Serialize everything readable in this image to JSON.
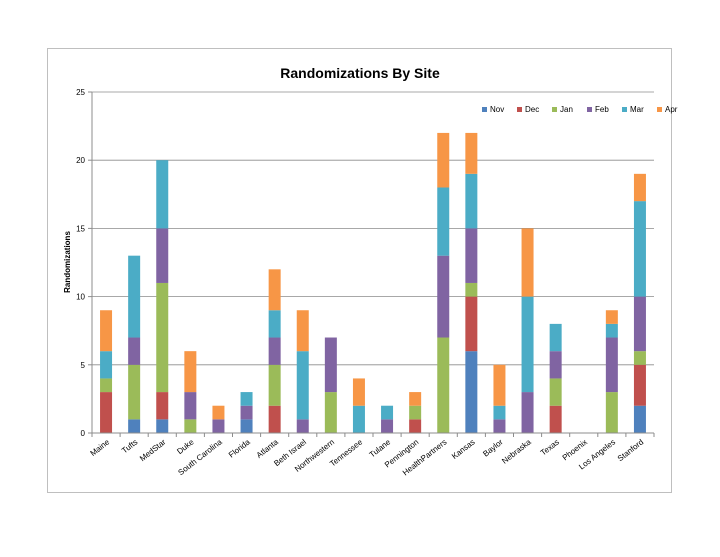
{
  "chart_data": {
    "type": "bar",
    "stacked": true,
    "title": "Randomizations By Site",
    "xlabel": "",
    "ylabel": "Randomizations",
    "ylim": [
      0,
      25
    ],
    "yticks": [
      0,
      5,
      10,
      15,
      20,
      25
    ],
    "grid": true,
    "legend_position": "top-right",
    "categories": [
      "Maine",
      "Tufts",
      "MedStar",
      "Duke",
      "South Carolina",
      "Florida",
      "Atlanta",
      "Beth Israel",
      "Northwestern",
      "Tennessee",
      "Tulane",
      "Pennington",
      "HealthPartners",
      "Kansas",
      "Baylor",
      "Nebraska",
      "Texas",
      "Phoenix",
      "Los Angeles",
      "Stanford"
    ],
    "series": [
      {
        "name": "Nov",
        "color": "#4F81BD",
        "values": [
          0,
          1,
          1,
          0,
          0,
          1,
          0,
          0,
          0,
          0,
          0,
          0,
          0,
          6,
          0,
          0,
          0,
          0,
          0,
          2
        ]
      },
      {
        "name": "Dec",
        "color": "#C0504D",
        "values": [
          3,
          0,
          2,
          0,
          0,
          0,
          2,
          0,
          0,
          0,
          0,
          1,
          0,
          4,
          0,
          0,
          2,
          0,
          0,
          3
        ]
      },
      {
        "name": "Jan",
        "color": "#9BBB59",
        "values": [
          1,
          4,
          8,
          1,
          0,
          0,
          3,
          0,
          3,
          0,
          0,
          1,
          7,
          1,
          0,
          0,
          2,
          0,
          3,
          1
        ]
      },
      {
        "name": "Feb",
        "color": "#8064A2",
        "values": [
          0,
          2,
          4,
          2,
          1,
          1,
          2,
          1,
          4,
          0,
          1,
          0,
          6,
          4,
          1,
          3,
          2,
          0,
          4,
          4
        ]
      },
      {
        "name": "Mar",
        "color": "#4BACC6",
        "values": [
          2,
          6,
          5,
          0,
          0,
          1,
          2,
          5,
          0,
          2,
          1,
          0,
          5,
          4,
          1,
          7,
          2,
          0,
          1,
          7
        ]
      },
      {
        "name": "Apr",
        "color": "#F79646",
        "values": [
          3,
          0,
          0,
          3,
          1,
          0,
          3,
          3,
          0,
          2,
          0,
          1,
          4,
          3,
          3,
          5,
          0,
          0,
          1,
          2
        ]
      }
    ]
  }
}
